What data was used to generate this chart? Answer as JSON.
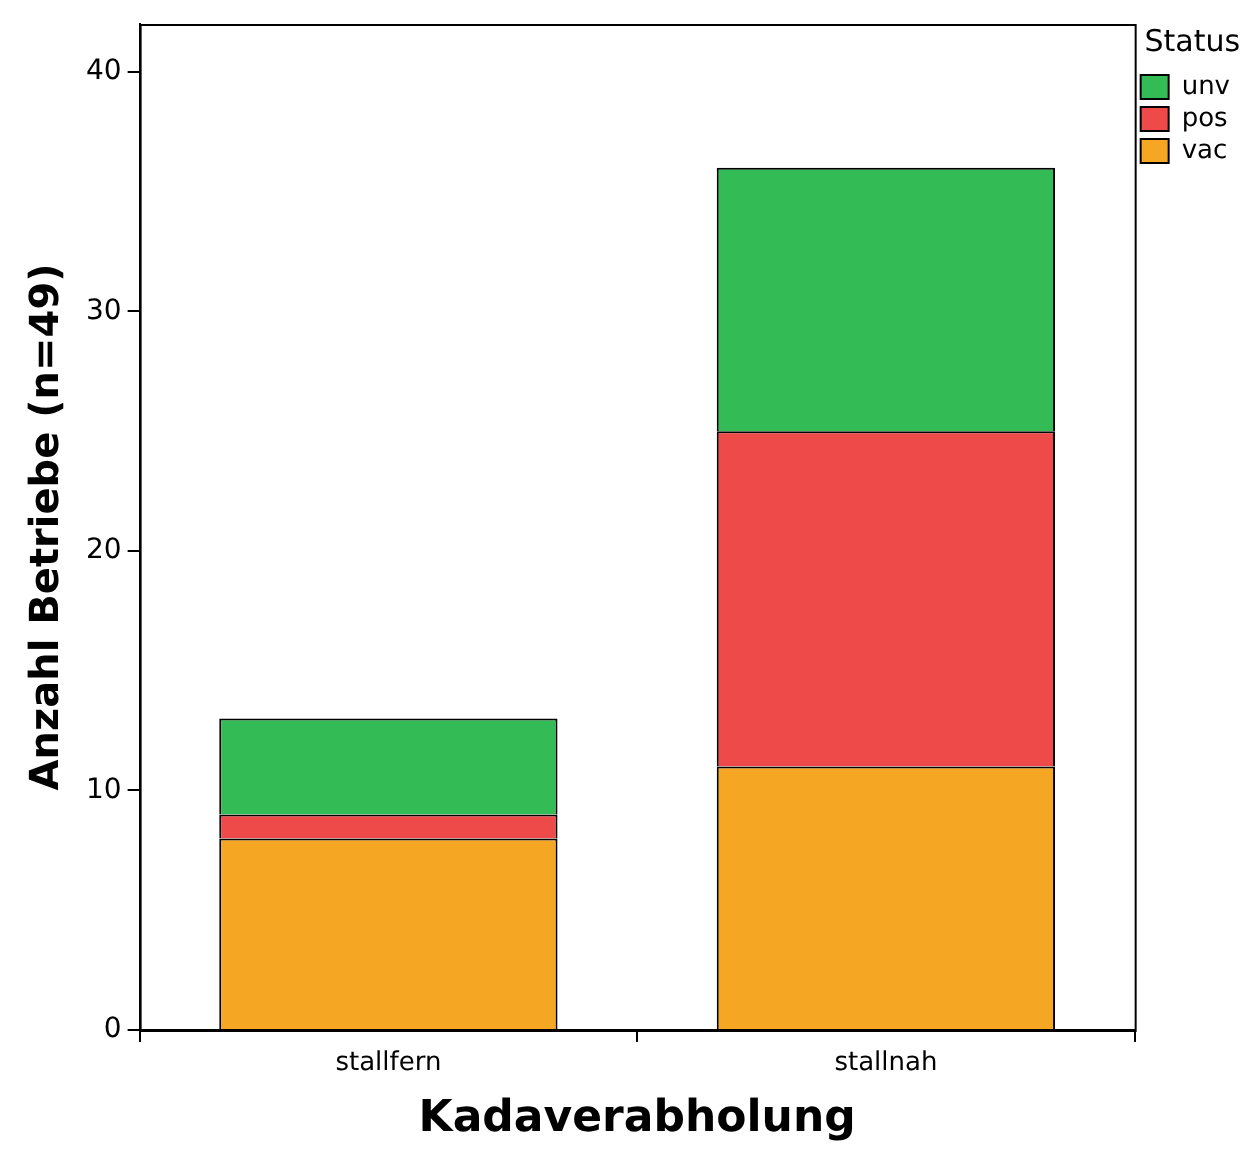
{
  "chart_data": {
    "type": "bar",
    "stacked": true,
    "xlabel": "Kadaverabholung",
    "ylabel": "Anzahl Betriebe (n=49)",
    "legend_title": "Status",
    "legend": "top right",
    "grid": false,
    "categories": [
      "stallfern",
      "stallnah"
    ],
    "series": [
      {
        "name": "vac",
        "color": "#f5a623",
        "values": [
          8,
          11
        ]
      },
      {
        "name": "pos",
        "color": "#ef4a4a",
        "values": [
          1,
          14
        ]
      },
      {
        "name": "unv",
        "color": "#33bb55",
        "values": [
          4,
          11
        ]
      }
    ],
    "ylim": [
      0,
      42
    ],
    "yticks": [
      0,
      10,
      20,
      30,
      40
    ]
  }
}
